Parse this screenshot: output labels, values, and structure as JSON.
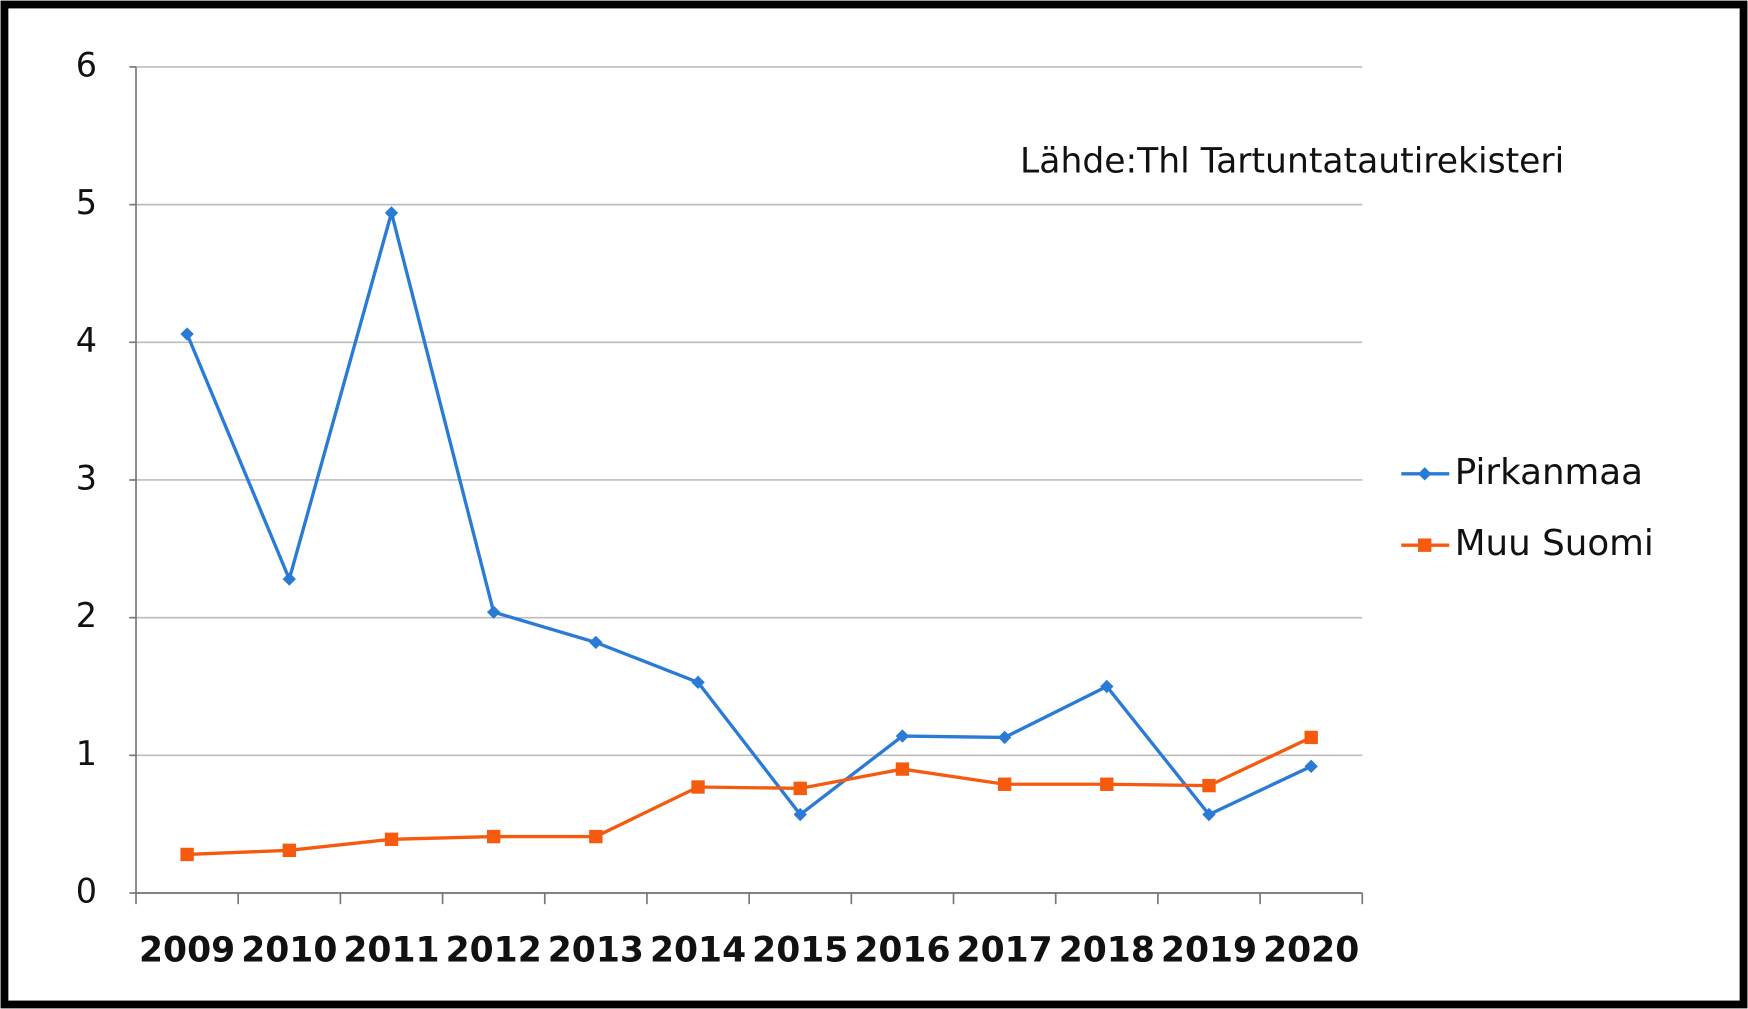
{
  "chart_data": {
    "type": "line",
    "annotation": "Lähde:Thl Tartuntatautirekisteri",
    "categories": [
      "2009",
      "2010",
      "2011",
      "2012",
      "2013",
      "2014",
      "2015",
      "2016",
      "2017",
      "2018",
      "2019",
      "2020"
    ],
    "series": [
      {
        "name": "Pirkanmaa",
        "color": "#2a7bd5",
        "marker": "diamond",
        "values": [
          4.06,
          2.28,
          4.94,
          2.04,
          1.82,
          1.53,
          0.57,
          1.14,
          1.13,
          1.5,
          0.57,
          0.92
        ]
      },
      {
        "name": "Muu Suomi",
        "color": "#f55a0f",
        "marker": "square",
        "values": [
          0.28,
          0.31,
          0.39,
          0.41,
          0.41,
          0.77,
          0.76,
          0.9,
          0.79,
          0.79,
          0.78,
          1.13
        ]
      }
    ],
    "ylim": [
      0,
      6
    ],
    "yticks": [
      0,
      1,
      2,
      3,
      4,
      5,
      6
    ],
    "grid": true,
    "legend": "right"
  }
}
